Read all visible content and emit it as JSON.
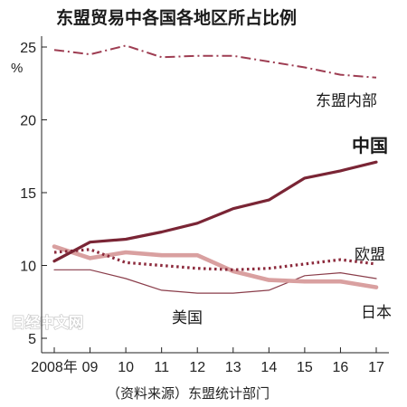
{
  "chart_data": {
    "type": "line",
    "title": "东盟贸易中各国各地区所占比例",
    "ylabel": "%",
    "source": "（资料来源）东盟统计部门",
    "watermark": "日经中文网",
    "x": [
      "2008年",
      "09",
      "10",
      "11",
      "12",
      "13",
      "14",
      "15",
      "16",
      "17"
    ],
    "ylim": [
      5,
      25
    ],
    "yticks": [
      "5",
      "10",
      "15",
      "20",
      "25"
    ],
    "grid": false,
    "series": [
      {
        "name": "东盟内部",
        "values": [
          24.8,
          24.5,
          25.1,
          24.3,
          24.4,
          24.4,
          24.0,
          23.6,
          23.1,
          22.9
        ],
        "color": "#9e3d52",
        "style": "dashdot"
      },
      {
        "name": "中国",
        "values": [
          10.3,
          11.6,
          11.8,
          12.3,
          12.9,
          13.9,
          14.5,
          16.0,
          16.5,
          17.1
        ],
        "color": "#7a2535",
        "style": "solid-thick"
      },
      {
        "name": "欧盟",
        "values": [
          10.9,
          11.1,
          10.2,
          10.0,
          9.8,
          9.7,
          9.8,
          10.1,
          10.4,
          10.1
        ],
        "color": "#8c2a3c",
        "style": "dotted"
      },
      {
        "name": "日本",
        "values": [
          11.3,
          10.5,
          10.9,
          10.7,
          10.7,
          9.6,
          9.0,
          8.9,
          8.9,
          8.5
        ],
        "color": "#d9a0a0",
        "style": "solid-wide"
      },
      {
        "name": "美国",
        "values": [
          9.7,
          9.7,
          9.1,
          8.3,
          8.1,
          8.1,
          8.3,
          9.3,
          9.5,
          9.1
        ],
        "color": "#8a3d4a",
        "style": "solid-thin"
      }
    ]
  }
}
